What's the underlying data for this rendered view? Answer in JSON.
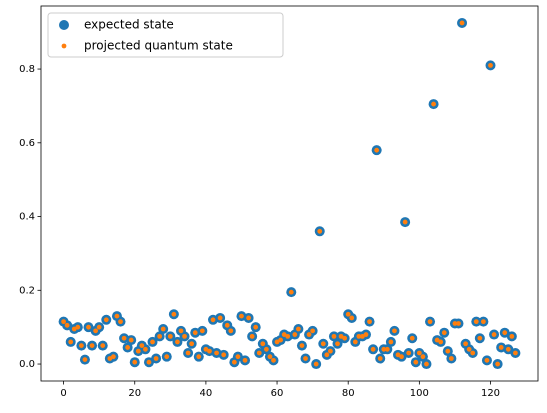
{
  "chart_data": {
    "type": "scatter",
    "x": [
      0,
      1,
      2,
      3,
      4,
      5,
      6,
      7,
      8,
      9,
      10,
      11,
      12,
      13,
      14,
      15,
      16,
      17,
      18,
      19,
      20,
      21,
      22,
      23,
      24,
      25,
      26,
      27,
      28,
      29,
      30,
      31,
      32,
      33,
      34,
      35,
      36,
      37,
      38,
      39,
      40,
      41,
      42,
      43,
      44,
      45,
      46,
      47,
      48,
      49,
      50,
      51,
      52,
      53,
      54,
      55,
      56,
      57,
      58,
      59,
      60,
      61,
      62,
      63,
      64,
      65,
      66,
      67,
      68,
      69,
      70,
      71,
      72,
      73,
      74,
      75,
      76,
      77,
      78,
      79,
      80,
      81,
      82,
      83,
      84,
      85,
      86,
      87,
      88,
      89,
      90,
      91,
      92,
      93,
      94,
      95,
      96,
      97,
      98,
      99,
      100,
      101,
      102,
      103,
      104,
      105,
      106,
      107,
      108,
      109,
      110,
      111,
      112,
      113,
      114,
      115,
      116,
      117,
      118,
      119,
      120,
      121,
      122,
      123,
      124,
      125,
      126,
      127
    ],
    "series": [
      {
        "name": "expected state",
        "color": "#1f77b4",
        "values": [
          0.115,
          0.105,
          0.06,
          0.095,
          0.1,
          0.05,
          0.012,
          0.1,
          0.05,
          0.09,
          0.1,
          0.05,
          0.12,
          0.015,
          0.02,
          0.13,
          0.115,
          0.07,
          0.045,
          0.065,
          0.005,
          0.035,
          0.05,
          0.04,
          0.005,
          0.06,
          0.015,
          0.075,
          0.095,
          0.02,
          0.075,
          0.135,
          0.06,
          0.09,
          0.075,
          0.03,
          0.055,
          0.085,
          0.02,
          0.09,
          0.04,
          0.035,
          0.12,
          0.03,
          0.125,
          0.025,
          0.105,
          0.09,
          0.005,
          0.02,
          0.13,
          0.01,
          0.125,
          0.075,
          0.1,
          0.03,
          0.055,
          0.04,
          0.02,
          0.01,
          0.06,
          0.065,
          0.08,
          0.075,
          0.195,
          0.08,
          0.095,
          0.05,
          0.015,
          0.08,
          0.09,
          0.0,
          0.36,
          0.055,
          0.025,
          0.035,
          0.075,
          0.055,
          0.075,
          0.07,
          0.135,
          0.125,
          0.06,
          0.075,
          0.075,
          0.08,
          0.115,
          0.04,
          0.58,
          0.015,
          0.04,
          0.04,
          0.06,
          0.09,
          0.025,
          0.02,
          0.385,
          0.03,
          0.07,
          0.005,
          0.03,
          0.02,
          0.0,
          0.115,
          0.705,
          0.065,
          0.06,
          0.085,
          0.035,
          0.015,
          0.11,
          0.11,
          0.925,
          0.055,
          0.04,
          0.03,
          0.115,
          0.07,
          0.115,
          0.01,
          0.81,
          0.08,
          0.0,
          0.045,
          0.085,
          0.04,
          0.075,
          0.03
        ]
      },
      {
        "name": "projected quantum state",
        "color": "#ff7f0e",
        "values": [
          0.115,
          0.105,
          0.06,
          0.095,
          0.1,
          0.05,
          0.012,
          0.1,
          0.05,
          0.09,
          0.1,
          0.05,
          0.12,
          0.015,
          0.02,
          0.13,
          0.115,
          0.07,
          0.045,
          0.065,
          0.005,
          0.035,
          0.05,
          0.04,
          0.005,
          0.06,
          0.015,
          0.075,
          0.095,
          0.02,
          0.075,
          0.135,
          0.06,
          0.09,
          0.075,
          0.03,
          0.055,
          0.085,
          0.02,
          0.09,
          0.04,
          0.035,
          0.12,
          0.03,
          0.125,
          0.025,
          0.105,
          0.09,
          0.005,
          0.02,
          0.13,
          0.01,
          0.125,
          0.075,
          0.1,
          0.03,
          0.055,
          0.04,
          0.02,
          0.01,
          0.06,
          0.065,
          0.08,
          0.075,
          0.195,
          0.08,
          0.095,
          0.05,
          0.015,
          0.08,
          0.09,
          0.0,
          0.36,
          0.055,
          0.025,
          0.035,
          0.075,
          0.055,
          0.075,
          0.07,
          0.135,
          0.125,
          0.06,
          0.075,
          0.075,
          0.08,
          0.115,
          0.04,
          0.58,
          0.015,
          0.04,
          0.04,
          0.06,
          0.09,
          0.025,
          0.02,
          0.385,
          0.03,
          0.07,
          0.005,
          0.03,
          0.02,
          0.0,
          0.115,
          0.705,
          0.065,
          0.06,
          0.085,
          0.035,
          0.015,
          0.11,
          0.11,
          0.925,
          0.055,
          0.04,
          0.03,
          0.115,
          0.07,
          0.115,
          0.01,
          0.81,
          0.08,
          0.0,
          0.045,
          0.085,
          0.04,
          0.075,
          0.03
        ]
      }
    ],
    "xlim": [
      -6.35,
      133.35
    ],
    "xticks": [
      0,
      20,
      40,
      60,
      80,
      100,
      120
    ],
    "ylim": [
      -0.046,
      0.971
    ],
    "yticks": [
      {
        "value": 0,
        "label": "0.0"
      },
      {
        "value": 0.2,
        "label": "0.2"
      },
      {
        "value": 0.4,
        "label": "0.4"
      },
      {
        "value": 0.6,
        "label": "0.6"
      },
      {
        "value": 0.8,
        "label": "0.8"
      }
    ],
    "legend": "upper left"
  }
}
